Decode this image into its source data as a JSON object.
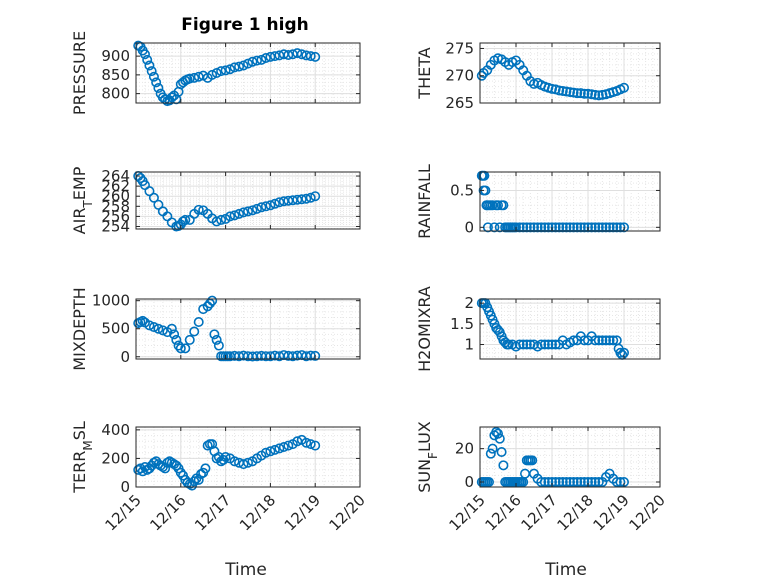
{
  "figure": {
    "title": "Figure 1 high",
    "marker_color": "#0072BD",
    "axis_color": "#262626",
    "grid_color": "#dfdfdf"
  },
  "chart_data": [
    {
      "type": "scatter",
      "title": "Figure 1 high",
      "xlabel": "",
      "ylabel": "PRESSURE",
      "xlim": [
        0,
        5
      ],
      "ylim": [
        775,
        935
      ],
      "yticks": [
        800,
        850,
        900
      ],
      "xticks": [
        0,
        1,
        2,
        3,
        4,
        5
      ],
      "xticklabels": [],
      "grid": true,
      "x": [
        0.05,
        0.1,
        0.15,
        0.2,
        0.25,
        0.3,
        0.35,
        0.4,
        0.45,
        0.5,
        0.55,
        0.6,
        0.65,
        0.7,
        0.75,
        0.8,
        0.85,
        0.9,
        0.95,
        1.0,
        1.05,
        1.1,
        1.15,
        1.2,
        1.3,
        1.4,
        1.5,
        1.6,
        1.7,
        1.8,
        1.9,
        2.0,
        2.1,
        2.2,
        2.3,
        2.4,
        2.5,
        2.6,
        2.7,
        2.8,
        2.9,
        3.0,
        3.1,
        3.2,
        3.3,
        3.4,
        3.5,
        3.6,
        3.7,
        3.8,
        3.9,
        4.0
      ],
      "y": [
        928,
        925,
        915,
        905,
        890,
        875,
        860,
        845,
        830,
        815,
        800,
        790,
        785,
        780,
        782,
        790,
        795,
        785,
        805,
        825,
        830,
        835,
        838,
        840,
        842,
        845,
        848,
        842,
        850,
        855,
        860,
        862,
        865,
        870,
        872,
        875,
        880,
        885,
        888,
        890,
        895,
        898,
        900,
        902,
        905,
        903,
        905,
        908,
        905,
        902,
        900,
        898
      ]
    },
    {
      "type": "scatter",
      "title": "",
      "xlabel": "",
      "ylabel": "THETA",
      "xlim": [
        0,
        5
      ],
      "ylim": [
        265,
        276
      ],
      "yticks": [
        265,
        270,
        275
      ],
      "xticks": [
        0,
        1,
        2,
        3,
        4,
        5
      ],
      "xticklabels": [],
      "grid": true,
      "x": [
        0.05,
        0.1,
        0.2,
        0.3,
        0.4,
        0.5,
        0.6,
        0.7,
        0.8,
        0.9,
        1.0,
        1.1,
        1.2,
        1.3,
        1.4,
        1.5,
        1.6,
        1.7,
        1.8,
        1.9,
        2.0,
        2.1,
        2.2,
        2.3,
        2.4,
        2.5,
        2.6,
        2.7,
        2.8,
        2.9,
        3.0,
        3.1,
        3.2,
        3.3,
        3.4,
        3.5,
        3.6,
        3.7,
        3.8,
        3.9,
        4.0
      ],
      "y": [
        270,
        270.5,
        271,
        272,
        272.8,
        273.2,
        273,
        272.5,
        272,
        272.5,
        272.8,
        272,
        271,
        270,
        269,
        268.5,
        268.7,
        268.3,
        268,
        267.8,
        267.6,
        267.5,
        267.3,
        267.2,
        267.1,
        267,
        266.9,
        266.8,
        266.8,
        266.7,
        266.7,
        266.6,
        266.5,
        266.4,
        266.5,
        266.6,
        266.8,
        267,
        267.2,
        267.5,
        267.8
      ]
    },
    {
      "type": "scatter",
      "title": "",
      "xlabel": "",
      "ylabel": "AIR_TEMP",
      "xlim": [
        0,
        5
      ],
      "ylim": [
        253.5,
        264.8
      ],
      "yticks": [
        254,
        256,
        258,
        260,
        262,
        264
      ],
      "xticks": [
        0,
        1,
        2,
        3,
        4,
        5
      ],
      "xticklabels": [],
      "grid": true,
      "x": [
        0.05,
        0.1,
        0.15,
        0.2,
        0.3,
        0.4,
        0.5,
        0.6,
        0.7,
        0.8,
        0.9,
        0.95,
        1.0,
        1.05,
        1.1,
        1.2,
        1.3,
        1.4,
        1.5,
        1.6,
        1.7,
        1.8,
        1.9,
        2.0,
        2.1,
        2.2,
        2.3,
        2.4,
        2.5,
        2.6,
        2.7,
        2.8,
        2.9,
        3.0,
        3.1,
        3.2,
        3.3,
        3.4,
        3.5,
        3.6,
        3.7,
        3.8,
        3.9,
        4.0
      ],
      "y": [
        264,
        263.6,
        263,
        262.2,
        261,
        259.7,
        258.3,
        257,
        256,
        254.8,
        254,
        254.1,
        254.4,
        255,
        255.3,
        255.3,
        256.5,
        257.3,
        257.2,
        256.5,
        255.6,
        255,
        255.3,
        255.5,
        256,
        256.2,
        256.5,
        256.8,
        257,
        257.2,
        257.5,
        257.8,
        258,
        258.2,
        258.5,
        258.8,
        259,
        259.1,
        259.2,
        259.3,
        259.4,
        259.5,
        259.7,
        260
      ]
    },
    {
      "type": "scatter",
      "title": "",
      "xlabel": "",
      "ylabel": "RAINFALL",
      "xlim": [
        0,
        5
      ],
      "ylim": [
        -0.05,
        0.75
      ],
      "yticks": [
        0,
        0.5
      ],
      "xticks": [
        0,
        1,
        2,
        3,
        4,
        5
      ],
      "xticklabels": [],
      "grid": true,
      "x": [
        0.05,
        0.08,
        0.1,
        0.12,
        0.15,
        0.18,
        0.2,
        0.22,
        0.25,
        0.3,
        0.35,
        0.4,
        0.45,
        0.5,
        0.55,
        0.6,
        0.65,
        0.7,
        0.75,
        0.8,
        0.85,
        0.9,
        0.95,
        1.0,
        1.1,
        1.2,
        1.3,
        1.4,
        1.5,
        1.6,
        1.7,
        1.8,
        1.9,
        2.0,
        2.1,
        2.2,
        2.3,
        2.4,
        2.5,
        2.6,
        2.7,
        2.8,
        2.9,
        3.0,
        3.1,
        3.2,
        3.3,
        3.4,
        3.5,
        3.6,
        3.7,
        3.8,
        3.9,
        4.0
      ],
      "y": [
        0.7,
        0.7,
        0.5,
        0.7,
        0.5,
        0.3,
        0.3,
        0.0,
        0.3,
        0.3,
        0.3,
        0.0,
        0.3,
        0.3,
        0.0,
        0.3,
        0.3,
        0,
        0,
        0,
        0,
        0,
        0,
        0,
        0,
        0,
        0,
        0,
        0,
        0,
        0,
        0,
        0,
        0,
        0,
        0,
        0,
        0,
        0,
        0,
        0,
        0,
        0,
        0,
        0,
        0,
        0,
        0,
        0,
        0,
        0,
        0,
        0,
        0
      ]
    },
    {
      "type": "scatter",
      "title": "",
      "xlabel": "",
      "ylabel": "MIXDEPTH",
      "xlim": [
        0,
        5
      ],
      "ylim": [
        -40,
        1030
      ],
      "yticks": [
        0,
        500,
        1000
      ],
      "xticks": [
        0,
        1,
        2,
        3,
        4,
        5
      ],
      "xticklabels": [],
      "grid": true,
      "x": [
        0.05,
        0.1,
        0.15,
        0.2,
        0.3,
        0.4,
        0.5,
        0.6,
        0.7,
        0.8,
        0.85,
        0.9,
        0.95,
        1.0,
        1.1,
        1.2,
        1.3,
        1.4,
        1.5,
        1.6,
        1.65,
        1.7,
        1.75,
        1.8,
        1.85,
        1.9,
        1.95,
        2.0,
        2.05,
        2.1,
        2.2,
        2.3,
        2.4,
        2.5,
        2.6,
        2.7,
        2.8,
        2.9,
        3.0,
        3.1,
        3.2,
        3.3,
        3.4,
        3.5,
        3.6,
        3.7,
        3.8,
        3.9,
        4.0
      ],
      "y": [
        600,
        620,
        640,
        610,
        560,
        530,
        500,
        470,
        440,
        500,
        400,
        300,
        200,
        150,
        150,
        300,
        450,
        620,
        850,
        900,
        950,
        1000,
        400,
        300,
        200,
        10,
        10,
        10,
        10,
        10,
        15,
        10,
        20,
        10,
        5,
        10,
        15,
        10,
        10,
        20,
        10,
        30,
        15,
        10,
        20,
        30,
        10,
        20,
        15
      ]
    },
    {
      "type": "scatter",
      "title": "",
      "xlabel": "",
      "ylabel": "H2OMIXRA",
      "xlim": [
        0,
        5
      ],
      "ylim": [
        0.65,
        2.1
      ],
      "yticks": [
        1,
        1.5,
        2
      ],
      "xticks": [
        0,
        1,
        2,
        3,
        4,
        5
      ],
      "xticklabels": [],
      "grid": true,
      "x": [
        0.05,
        0.1,
        0.15,
        0.2,
        0.25,
        0.3,
        0.35,
        0.4,
        0.45,
        0.5,
        0.55,
        0.6,
        0.65,
        0.7,
        0.75,
        0.8,
        0.9,
        1.0,
        1.1,
        1.2,
        1.3,
        1.4,
        1.5,
        1.6,
        1.7,
        1.8,
        1.9,
        2.0,
        2.1,
        2.2,
        2.3,
        2.4,
        2.5,
        2.6,
        2.7,
        2.8,
        2.9,
        3.0,
        3.1,
        3.2,
        3.3,
        3.4,
        3.5,
        3.6,
        3.7,
        3.8,
        3.85,
        3.9,
        3.95,
        4.0
      ],
      "y": [
        2.0,
        2.0,
        2.0,
        1.9,
        1.8,
        1.7,
        1.6,
        1.5,
        1.4,
        1.35,
        1.3,
        1.2,
        1.1,
        1.05,
        1.0,
        1.0,
        1.0,
        0.95,
        1.0,
        1.0,
        1.0,
        1.0,
        1.0,
        0.95,
        1.0,
        1.0,
        1.0,
        1.0,
        1.0,
        1.0,
        1.1,
        1.0,
        1.05,
        1.1,
        1.1,
        1.2,
        1.1,
        1.1,
        1.2,
        1.1,
        1.1,
        1.1,
        1.1,
        1.1,
        1.1,
        1.1,
        0.9,
        0.8,
        0.75,
        0.8
      ]
    },
    {
      "type": "scatter",
      "title": "",
      "xlabel": "Time",
      "ylabel": "TERR_MSL",
      "xlim": [
        0,
        5
      ],
      "ylim": [
        0,
        420
      ],
      "yticks": [
        0,
        200,
        400
      ],
      "xticks": [
        0,
        1,
        2,
        3,
        4,
        5
      ],
      "xticklabels": [
        "12/15",
        "12/16",
        "12/17",
        "12/18",
        "12/19",
        "12/20"
      ],
      "grid": true,
      "x": [
        0.05,
        0.1,
        0.15,
        0.2,
        0.25,
        0.3,
        0.35,
        0.4,
        0.45,
        0.5,
        0.55,
        0.6,
        0.65,
        0.7,
        0.75,
        0.8,
        0.85,
        0.9,
        0.95,
        1.0,
        1.05,
        1.1,
        1.15,
        1.2,
        1.25,
        1.3,
        1.35,
        1.4,
        1.45,
        1.5,
        1.55,
        1.6,
        1.65,
        1.7,
        1.75,
        1.8,
        1.85,
        1.9,
        1.95,
        2.0,
        2.1,
        2.2,
        2.3,
        2.4,
        2.5,
        2.6,
        2.7,
        2.8,
        2.9,
        3.0,
        3.1,
        3.2,
        3.3,
        3.4,
        3.5,
        3.6,
        3.7,
        3.8,
        3.9,
        4.0
      ],
      "y": [
        120,
        130,
        110,
        140,
        120,
        130,
        150,
        170,
        180,
        160,
        150,
        140,
        130,
        170,
        180,
        170,
        160,
        150,
        130,
        100,
        80,
        50,
        30,
        20,
        10,
        40,
        60,
        50,
        90,
        100,
        130,
        290,
        300,
        300,
        250,
        200,
        210,
        180,
        190,
        210,
        200,
        180,
        170,
        160,
        170,
        180,
        200,
        220,
        240,
        250,
        260,
        270,
        280,
        290,
        300,
        320,
        330,
        310,
        300,
        290
      ]
    },
    {
      "type": "scatter",
      "title": "",
      "xlabel": "Time",
      "ylabel": "SUN_FLUX",
      "xlim": [
        0,
        5
      ],
      "ylim": [
        -3,
        33
      ],
      "yticks": [
        0,
        20
      ],
      "xticks": [
        0,
        1,
        2,
        3,
        4,
        5
      ],
      "xticklabels": [
        "12/15",
        "12/16",
        "12/17",
        "12/18",
        "12/19",
        "12/20"
      ],
      "grid": true,
      "x": [
        0.05,
        0.1,
        0.15,
        0.2,
        0.25,
        0.3,
        0.35,
        0.4,
        0.45,
        0.5,
        0.55,
        0.6,
        0.65,
        0.7,
        0.75,
        0.8,
        0.85,
        0.9,
        0.95,
        1.0,
        1.05,
        1.1,
        1.15,
        1.2,
        1.25,
        1.3,
        1.35,
        1.4,
        1.45,
        1.5,
        1.6,
        1.7,
        1.8,
        1.9,
        2.0,
        2.1,
        2.2,
        2.3,
        2.4,
        2.5,
        2.6,
        2.7,
        2.8,
        2.9,
        3.0,
        3.1,
        3.2,
        3.3,
        3.4,
        3.5,
        3.6,
        3.7,
        3.8,
        3.9,
        4.0
      ],
      "y": [
        0,
        0,
        0,
        0,
        0,
        17,
        20,
        28,
        30,
        29,
        26,
        18,
        10,
        0,
        0,
        0,
        0,
        0,
        0,
        0,
        0,
        0,
        0,
        0,
        5,
        13,
        13,
        13,
        13,
        5,
        2,
        0,
        0,
        0,
        0,
        0,
        0,
        0,
        0,
        0,
        0,
        0,
        0,
        0,
        0,
        0,
        0,
        0,
        0,
        3,
        5,
        2,
        0,
        0,
        0
      ]
    }
  ]
}
